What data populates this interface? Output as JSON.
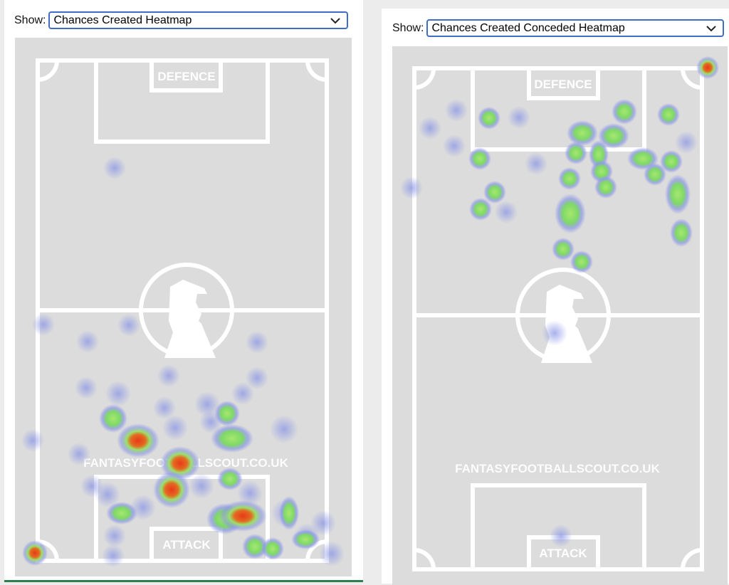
{
  "left_panel": {
    "show_label": "Show:",
    "selected_option": "Chances Created Heatmap",
    "pitch": {
      "defence_label": "DEFENCE",
      "attack_label": "ATTACK",
      "watermark": "FANTASYFOOTBALLSCOUT.CO.UK"
    }
  },
  "right_panel": {
    "show_label": "Show:",
    "selected_option": "Chances Created Conceded Heatmap",
    "pitch": {
      "defence_label": "DEFENCE",
      "attack_label": "ATTACK",
      "watermark": "FANTASYFOOTBALLSCOUT.CO.UK"
    }
  },
  "colors": {
    "pitch_bg": "#dcdcdc",
    "lines": "#ffffff",
    "heat_low": "#8a96e6",
    "heat_mid": "#8fe07a",
    "heat_high": "#e83a1a",
    "select_border": "#3f6cc4"
  },
  "icons": {
    "dropdown": "chevron-down-icon",
    "logo": "scout-silhouette-logo"
  }
}
